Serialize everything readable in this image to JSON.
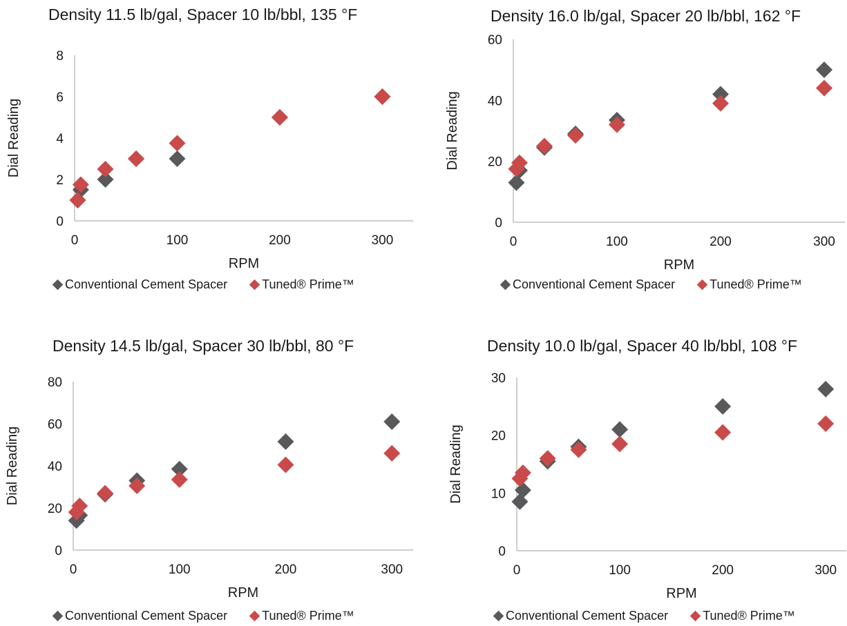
{
  "colors": {
    "conventional": "#58595b",
    "tuned": "#c94a4a",
    "axis": "#bfbfbf"
  },
  "legend": {
    "series1": "Conventional Cement Spacer",
    "series2": "Tuned® Prime™"
  },
  "chart_data": [
    {
      "type": "scatter",
      "title": "Density 11.5 lb/gal, Spacer 10 lb/bbl, 135 °F",
      "xlabel": "RPM",
      "ylabel": "Dial Reading",
      "xlim": [
        0,
        330
      ],
      "ylim": [
        0,
        8
      ],
      "xticks": [
        0,
        100,
        200,
        300
      ],
      "yticks": [
        0,
        2,
        4,
        6,
        8
      ],
      "grid": false,
      "legend_position": "bottom",
      "series": [
        {
          "name": "Conventional Cement Spacer",
          "color": "#58595b",
          "x": [
            3,
            6,
            30,
            60,
            100,
            200,
            300
          ],
          "y": [
            1.0,
            1.5,
            2.0,
            3.0,
            3.0,
            5.0,
            6.0
          ]
        },
        {
          "name": "Tuned® Prime™",
          "color": "#c94a4a",
          "x": [
            3,
            6,
            30,
            60,
            100,
            200,
            300
          ],
          "y": [
            1.0,
            1.75,
            2.5,
            3.0,
            3.75,
            5.0,
            6.0
          ]
        }
      ]
    },
    {
      "type": "scatter",
      "title": "Density 16.0 lb/gal, Spacer 20 lb/bbl, 162 °F",
      "xlabel": "RPM",
      "ylabel": "Dial Reading",
      "xlim": [
        0,
        320
      ],
      "ylim": [
        0,
        60
      ],
      "xticks": [
        0,
        100,
        200,
        300
      ],
      "yticks": [
        0,
        20,
        40,
        60
      ],
      "grid": false,
      "legend_position": "bottom",
      "series": [
        {
          "name": "Conventional Cement Spacer",
          "color": "#58595b",
          "x": [
            3,
            6,
            30,
            60,
            100,
            200,
            300
          ],
          "y": [
            13,
            17,
            24.5,
            29,
            33.5,
            42,
            50
          ]
        },
        {
          "name": "Tuned® Prime™",
          "color": "#c94a4a",
          "x": [
            3,
            6,
            30,
            60,
            100,
            200,
            300
          ],
          "y": [
            17.5,
            19.5,
            25,
            28.5,
            32,
            39,
            44
          ]
        }
      ]
    },
    {
      "type": "scatter",
      "title": "Density 14.5 lb/gal, Spacer 30 lb/bbl, 80 °F",
      "xlabel": "RPM",
      "ylabel": "Dial Reading",
      "xlim": [
        0,
        320
      ],
      "ylim": [
        0,
        80
      ],
      "xticks": [
        0,
        100,
        200,
        300
      ],
      "yticks": [
        0,
        20,
        40,
        60,
        80
      ],
      "grid": false,
      "legend_position": "bottom",
      "series": [
        {
          "name": "Conventional Cement Spacer",
          "color": "#58595b",
          "x": [
            3,
            6,
            30,
            60,
            100,
            200,
            300
          ],
          "y": [
            14,
            16.5,
            26.5,
            33,
            38.5,
            51.5,
            61
          ]
        },
        {
          "name": "Tuned® Prime™",
          "color": "#c94a4a",
          "x": [
            3,
            6,
            30,
            60,
            100,
            200,
            300
          ],
          "y": [
            18,
            21,
            27,
            30.5,
            33.5,
            40.5,
            46
          ]
        }
      ]
    },
    {
      "type": "scatter",
      "title": "Density 10.0 lb/gal, Spacer 40 lb/bbl, 108 °F",
      "xlabel": "RPM",
      "ylabel": "Dial Reading",
      "xlim": [
        0,
        320
      ],
      "ylim": [
        0,
        30
      ],
      "xticks": [
        0,
        100,
        200,
        300
      ],
      "yticks": [
        0,
        10,
        20,
        30
      ],
      "grid": false,
      "legend_position": "bottom",
      "series": [
        {
          "name": "Conventional Cement Spacer",
          "color": "#58595b",
          "x": [
            3,
            6,
            30,
            60,
            100,
            200,
            300
          ],
          "y": [
            8.5,
            10.5,
            15.5,
            18,
            21,
            25,
            28
          ]
        },
        {
          "name": "Tuned® Prime™",
          "color": "#c94a4a",
          "x": [
            3,
            6,
            30,
            60,
            100,
            200,
            300
          ],
          "y": [
            12.5,
            13.5,
            16,
            17.5,
            18.5,
            20.5,
            22
          ]
        }
      ]
    }
  ]
}
